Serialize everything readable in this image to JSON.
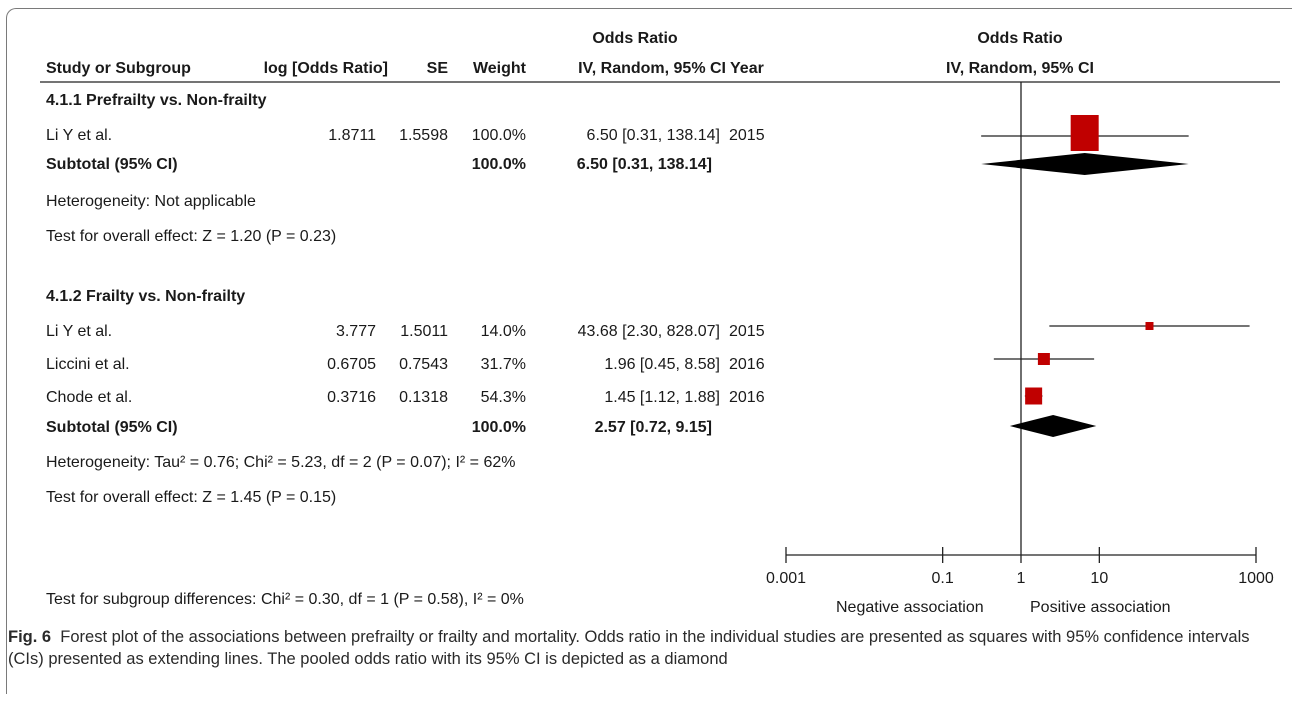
{
  "table": {
    "header_top": {
      "odds_ratio_col": "Odds Ratio",
      "odds_ratio_plot": "Odds Ratio"
    },
    "header": {
      "study": "Study or Subgroup",
      "logor": "log [Odds Ratio]",
      "se": "SE",
      "weight": "Weight",
      "ci": "IV, Random, 95% CI",
      "year": "Year",
      "plot": "IV, Random, 95% CI"
    },
    "groups": [
      {
        "title": "4.1.1 Prefrailty vs. Non-frailty",
        "studies": [
          {
            "name": "Li Y et al.",
            "logor": "1.8711",
            "se": "1.5598",
            "weight": "100.0%",
            "ci": "6.50 [0.31, 138.14]",
            "year": "2015"
          }
        ],
        "subtotal": {
          "label": "Subtotal (95% CI)",
          "weight": "100.0%",
          "ci": "6.50 [0.31, 138.14]"
        },
        "heterogeneity": "Heterogeneity: Not applicable",
        "overall": "Test for overall effect: Z = 1.20 (P = 0.23)"
      },
      {
        "title": "4.1.2 Frailty vs. Non-frailty",
        "studies": [
          {
            "name": "Li Y et al.",
            "logor": "3.777",
            "se": "1.5011",
            "weight": "14.0%",
            "ci": "43.68 [2.30, 828.07]",
            "year": "2015"
          },
          {
            "name": "Liccini et al.",
            "logor": "0.6705",
            "se": "0.7543",
            "weight": "31.7%",
            "ci": "1.96 [0.45, 8.58]",
            "year": "2016"
          },
          {
            "name": "Chode et al.",
            "logor": "0.3716",
            "se": "0.1318",
            "weight": "54.3%",
            "ci": "1.45 [1.12, 1.88]",
            "year": "2016"
          }
        ],
        "subtotal": {
          "label": "Subtotal (95% CI)",
          "weight": "100.0%",
          "ci": "2.57 [0.72, 9.15]"
        },
        "heterogeneity": "Heterogeneity: Tau² = 0.76; Chi² = 5.23, df = 2 (P = 0.07); I² = 62%",
        "overall": "Test for overall effect: Z = 1.45 (P = 0.15)"
      }
    ],
    "subgroup_test": "Test for subgroup differences: Chi² = 0.30, df = 1 (P = 0.58), I² = 0%"
  },
  "chart_data": {
    "type": "forest",
    "x_scale": "log10",
    "xlim": [
      0.001,
      1000
    ],
    "xticks": [
      0.001,
      0.1,
      1,
      10,
      1000
    ],
    "xtick_labels": [
      "0.001",
      "0.1",
      "1",
      "10",
      "1000"
    ],
    "left_label": "Negative association",
    "right_label": "Positive association",
    "null_line": 1,
    "marker_color": "#c00000",
    "points": [
      {
        "group": "4.1.1 Prefrailty vs. Non-frailty",
        "study": "Li Y et al.",
        "or": 6.5,
        "lo": 0.31,
        "hi": 138.14,
        "weight": 100.0
      },
      {
        "group": "4.1.2 Frailty vs. Non-frailty",
        "study": "Li Y et al.",
        "or": 43.68,
        "lo": 2.3,
        "hi": 828.07,
        "weight": 14.0
      },
      {
        "group": "4.1.2 Frailty vs. Non-frailty",
        "study": "Liccini et al.",
        "or": 1.96,
        "lo": 0.45,
        "hi": 8.58,
        "weight": 31.7
      },
      {
        "group": "4.1.2 Frailty vs. Non-frailty",
        "study": "Chode et al.",
        "or": 1.45,
        "lo": 1.12,
        "hi": 1.88,
        "weight": 54.3
      }
    ],
    "diamonds": [
      {
        "group": "4.1.1 Prefrailty vs. Non-frailty",
        "or": 6.5,
        "lo": 0.31,
        "hi": 138.14
      },
      {
        "group": "4.1.2 Frailty vs. Non-frailty",
        "or": 2.57,
        "lo": 0.72,
        "hi": 9.15
      }
    ]
  },
  "caption": {
    "label": "Fig. 6",
    "text": "Forest plot of the associations between prefrailty or frailty and mortality. Odds ratio in the individual studies are presented as squares with 95% confidence intervals (CIs) presented as extending lines. The pooled odds ratio with its 95% CI is depicted as a diamond"
  }
}
